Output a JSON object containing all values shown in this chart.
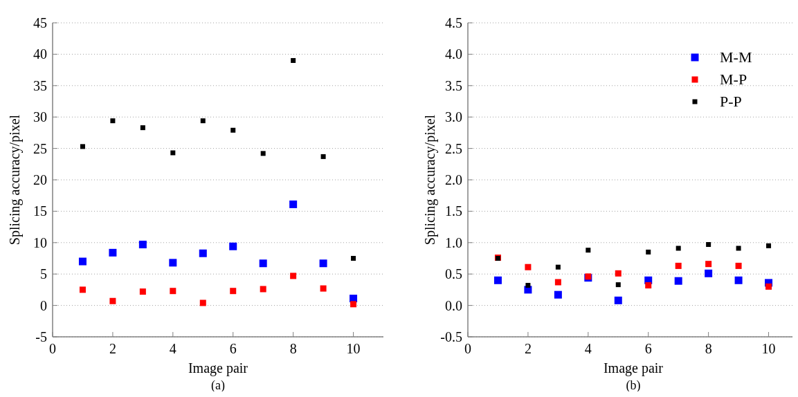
{
  "chart_data": [
    {
      "type": "scatter",
      "xlabel": "Image pair",
      "ylabel": "Splicing accuracy/pixel",
      "annotations": [
        "(a)"
      ],
      "x": [
        1,
        2,
        3,
        4,
        5,
        6,
        7,
        8,
        9,
        10
      ],
      "xlim": [
        0,
        11
      ],
      "xticks": [
        0,
        2,
        4,
        6,
        8,
        10
      ],
      "ylim": [
        -5,
        45
      ],
      "yticks": [
        -5,
        0,
        5,
        10,
        15,
        20,
        25,
        30,
        35,
        40,
        45
      ],
      "grid": "y",
      "marker": "square",
      "legend": false,
      "series": [
        {
          "color": "#0000ff",
          "values": [
            7.0,
            8.4,
            9.7,
            6.8,
            8.3,
            9.4,
            6.7,
            16.1,
            6.7,
            1.1
          ]
        },
        {
          "color": "#ff0000",
          "values": [
            2.5,
            0.7,
            2.2,
            2.3,
            0.4,
            2.3,
            2.6,
            4.7,
            2.7,
            0.2
          ]
        },
        {
          "color": "#000000",
          "values": [
            25.3,
            29.4,
            28.3,
            24.3,
            29.4,
            27.9,
            24.2,
            39.0,
            23.7,
            7.5
          ]
        }
      ]
    },
    {
      "type": "scatter",
      "xlabel": "Image pair",
      "ylabel": "Splicing accuracy/pixel",
      "annotations": [
        "(b)"
      ],
      "x": [
        1,
        2,
        3,
        4,
        5,
        6,
        7,
        8,
        9,
        10
      ],
      "xlim": [
        0,
        11
      ],
      "xticks": [
        0,
        2,
        4,
        6,
        8,
        10
      ],
      "ylim": [
        -0.5,
        4.5
      ],
      "yticks": [
        -0.5,
        {
          "value": 0,
          "label": "0.0"
        },
        0.5,
        {
          "value": 1,
          "label": "1.0"
        },
        1.5,
        {
          "value": 2,
          "label": "2.0"
        },
        2.5,
        {
          "value": 3,
          "label": "3.0"
        },
        3.5,
        {
          "value": 4,
          "label": "4.0"
        },
        4.5
      ],
      "grid": "y",
      "marker": "square",
      "legend": "top right",
      "series": [
        {
          "name": "M-M",
          "color": "#0000ff",
          "values": [
            0.4,
            0.25,
            0.17,
            0.44,
            0.08,
            0.4,
            0.39,
            0.51,
            0.4,
            0.36
          ]
        },
        {
          "name": "M-P",
          "color": "#ff0000",
          "values": [
            0.76,
            0.61,
            0.37,
            0.46,
            0.51,
            0.32,
            0.63,
            0.66,
            0.63,
            0.3
          ]
        },
        {
          "name": "P-P",
          "color": "#000000",
          "values": [
            0.75,
            0.32,
            0.61,
            0.88,
            0.33,
            0.85,
            0.91,
            0.97,
            0.91,
            0.95
          ]
        }
      ]
    }
  ]
}
